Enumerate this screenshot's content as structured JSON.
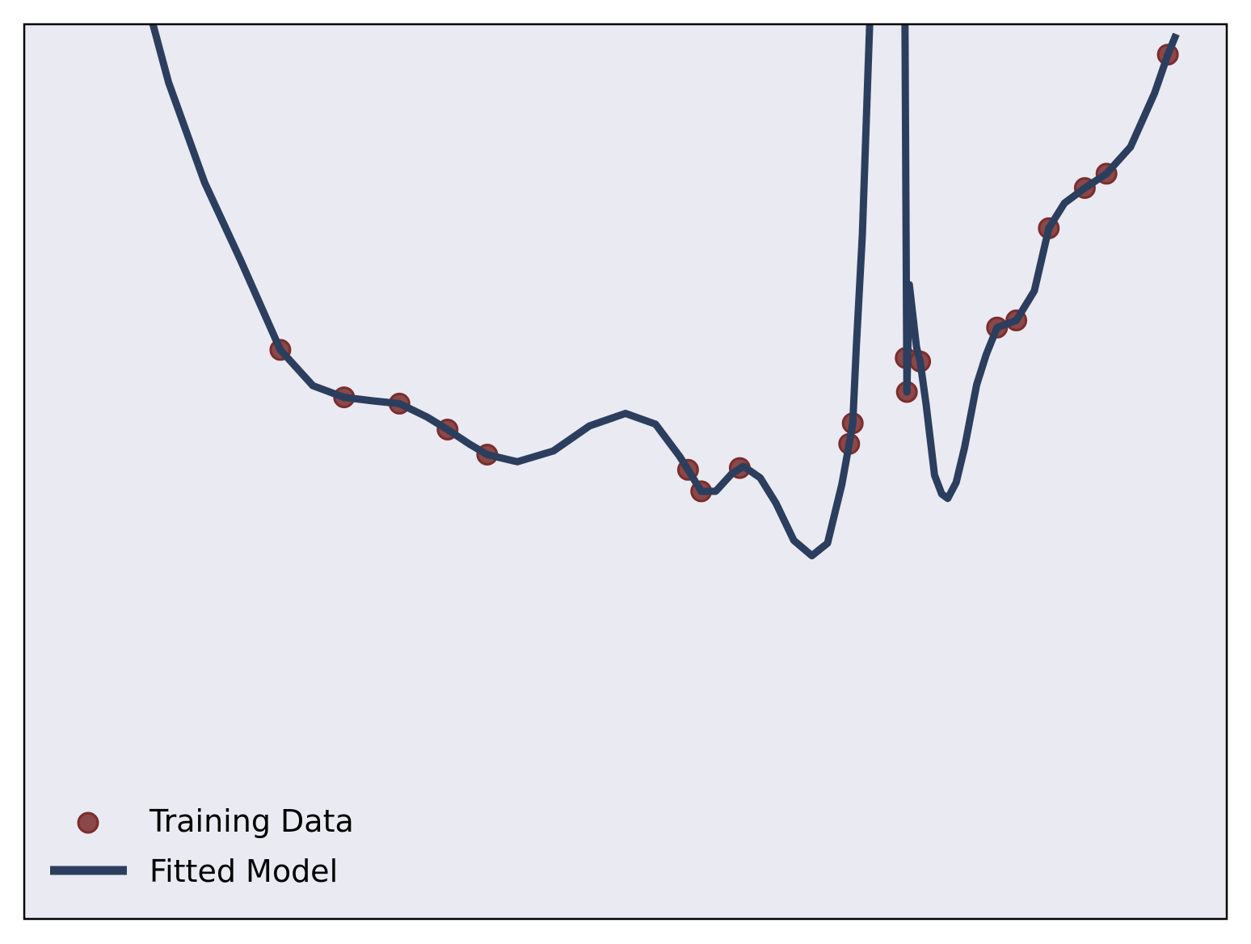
{
  "chart_data": {
    "type": "scatter",
    "title": "",
    "xlabel": "",
    "ylabel": "",
    "xlim": [
      0,
      1
    ],
    "ylim": [
      0,
      1
    ],
    "ticks_shown": false,
    "grid": false,
    "background_color": "#eaeaf2",
    "legend_placement": "lower-left",
    "series": [
      {
        "name": "Training Data",
        "kind": "scatter",
        "color": "#7b2d2d",
        "points": [
          [
            0.213,
            0.636
          ],
          [
            0.266,
            0.583
          ],
          [
            0.312,
            0.576
          ],
          [
            0.352,
            0.547
          ],
          [
            0.385,
            0.519
          ],
          [
            0.552,
            0.502
          ],
          [
            0.563,
            0.478
          ],
          [
            0.595,
            0.504
          ],
          [
            0.686,
            0.531
          ],
          [
            0.689,
            0.554
          ],
          [
            0.733,
            0.627
          ],
          [
            0.734,
            0.589
          ],
          [
            0.745,
            0.623
          ],
          [
            0.809,
            0.661
          ],
          [
            0.825,
            0.669
          ],
          [
            0.852,
            0.772
          ],
          [
            0.882,
            0.817
          ],
          [
            0.9,
            0.833
          ],
          [
            0.951,
            0.966
          ]
        ]
      },
      {
        "name": "Fitted Model",
        "kind": "line",
        "color": "#2c3e5e",
        "points": [
          [
            0.087,
            1.1
          ],
          [
            0.12,
            0.935
          ],
          [
            0.15,
            0.823
          ],
          [
            0.18,
            0.736
          ],
          [
            0.213,
            0.636
          ],
          [
            0.24,
            0.596
          ],
          [
            0.266,
            0.583
          ],
          [
            0.29,
            0.579
          ],
          [
            0.312,
            0.576
          ],
          [
            0.335,
            0.561
          ],
          [
            0.352,
            0.547
          ],
          [
            0.37,
            0.531
          ],
          [
            0.385,
            0.519
          ],
          [
            0.41,
            0.511
          ],
          [
            0.44,
            0.523
          ],
          [
            0.47,
            0.551
          ],
          [
            0.5,
            0.565
          ],
          [
            0.525,
            0.553
          ],
          [
            0.545,
            0.517
          ],
          [
            0.552,
            0.502
          ],
          [
            0.563,
            0.478
          ],
          [
            0.575,
            0.478
          ],
          [
            0.588,
            0.497
          ],
          [
            0.598,
            0.506
          ],
          [
            0.612,
            0.493
          ],
          [
            0.625,
            0.465
          ],
          [
            0.64,
            0.423
          ],
          [
            0.655,
            0.406
          ],
          [
            0.668,
            0.42
          ],
          [
            0.68,
            0.486
          ],
          [
            0.686,
            0.531
          ],
          [
            0.689,
            0.554
          ],
          [
            0.692,
            0.641
          ],
          [
            0.697,
            0.765
          ],
          [
            0.702,
            0.961
          ],
          [
            0.706,
            1.11
          ],
          [
            0.732,
            1.11
          ],
          [
            0.734,
            0.589
          ],
          [
            0.736,
            0.709
          ],
          [
            0.742,
            0.639
          ],
          [
            0.745,
            0.623
          ],
          [
            0.75,
            0.575
          ],
          [
            0.757,
            0.496
          ],
          [
            0.763,
            0.475
          ],
          [
            0.768,
            0.47
          ],
          [
            0.775,
            0.488
          ],
          [
            0.782,
            0.527
          ],
          [
            0.792,
            0.597
          ],
          [
            0.8,
            0.631
          ],
          [
            0.809,
            0.661
          ],
          [
            0.825,
            0.669
          ],
          [
            0.84,
            0.702
          ],
          [
            0.852,
            0.772
          ],
          [
            0.865,
            0.8
          ],
          [
            0.882,
            0.817
          ],
          [
            0.9,
            0.833
          ],
          [
            0.92,
            0.863
          ],
          [
            0.94,
            0.923
          ],
          [
            0.951,
            0.966
          ],
          [
            0.958,
            0.989
          ]
        ]
      }
    ]
  }
}
